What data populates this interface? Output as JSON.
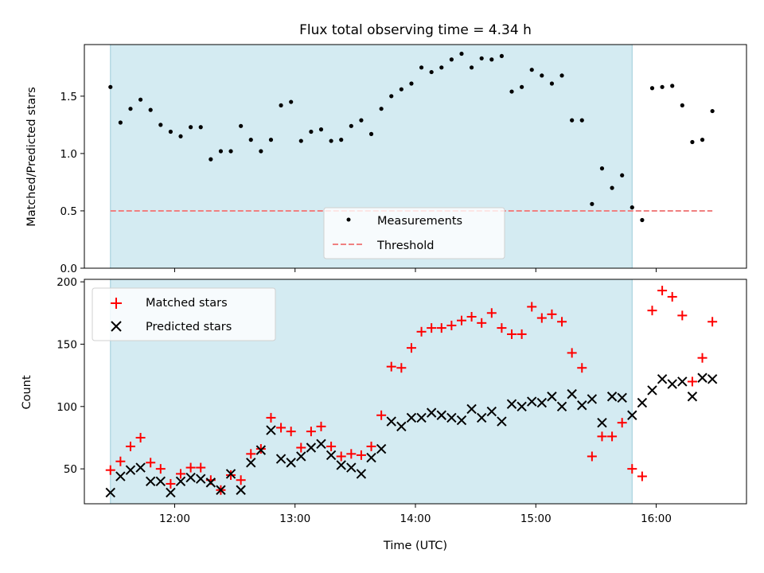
{
  "chart_data": [
    {
      "type": "scatter",
      "title": "Flux total observing time = 4.34 h",
      "xlabel": "",
      "ylabel": "Matched/Predicted stars",
      "ylim": [
        0,
        1.95
      ],
      "xlim": [
        "11:15",
        "16:45"
      ],
      "yticks": [
        0.0,
        0.5,
        1.0,
        1.5
      ],
      "ytick_labels": [
        "0.0",
        "0.5",
        "1.0",
        "1.5"
      ],
      "shaded_interval": [
        "11:28",
        "15:48"
      ],
      "legend_position": "lower-center",
      "threshold": 0.5,
      "threshold_range": [
        "11:28",
        "16:28"
      ],
      "series": [
        {
          "name": "Measurements",
          "style": "dots",
          "color": "#000000",
          "x": [
            "11:28",
            "11:33",
            "11:38",
            "11:43",
            "11:48",
            "11:53",
            "11:58",
            "12:03",
            "12:08",
            "12:13",
            "12:18",
            "12:23",
            "12:28",
            "12:33",
            "12:38",
            "12:43",
            "12:48",
            "12:53",
            "12:58",
            "13:03",
            "13:08",
            "13:13",
            "13:18",
            "13:23",
            "13:28",
            "13:33",
            "13:38",
            "13:43",
            "13:48",
            "13:53",
            "13:58",
            "14:03",
            "14:08",
            "14:13",
            "14:18",
            "14:23",
            "14:28",
            "14:33",
            "14:38",
            "14:43",
            "14:48",
            "14:53",
            "14:58",
            "15:03",
            "15:08",
            "15:13",
            "15:18",
            "15:23",
            "15:28",
            "15:33",
            "15:38",
            "15:43",
            "15:48",
            "15:53",
            "15:58",
            "16:03",
            "16:08",
            "16:13",
            "16:18",
            "16:23",
            "16:28"
          ],
          "y": [
            1.58,
            1.27,
            1.39,
            1.47,
            1.38,
            1.25,
            1.19,
            1.15,
            1.23,
            1.23,
            0.95,
            1.02,
            1.02,
            1.24,
            1.12,
            1.02,
            1.12,
            1.42,
            1.45,
            1.11,
            1.19,
            1.21,
            1.11,
            1.12,
            1.24,
            1.29,
            1.17,
            1.39,
            1.5,
            1.56,
            1.61,
            1.75,
            1.71,
            1.75,
            1.82,
            1.87,
            1.75,
            1.83,
            1.82,
            1.85,
            1.54,
            1.58,
            1.73,
            1.68,
            1.61,
            1.68,
            1.29,
            1.29,
            0.56,
            0.87,
            0.7,
            0.81,
            0.53,
            0.42,
            1.57,
            1.58,
            1.59,
            1.42,
            1.1,
            1.12,
            1.37
          ]
        },
        {
          "name": "Threshold",
          "style": "dashed",
          "color": "#f08080"
        }
      ]
    },
    {
      "type": "scatter",
      "title": "",
      "xlabel": "Time (UTC)",
      "ylabel": "Count",
      "ylim": [
        22,
        202
      ],
      "xlim": [
        "11:15",
        "16:45"
      ],
      "yticks": [
        50,
        100,
        150,
        200
      ],
      "ytick_labels": [
        "50",
        "100",
        "150",
        "200"
      ],
      "xticks": [
        "12:00",
        "13:00",
        "14:00",
        "15:00",
        "16:00"
      ],
      "xtick_labels": [
        "12:00",
        "13:00",
        "14:00",
        "15:00",
        "16:00"
      ],
      "shaded_interval": [
        "11:28",
        "15:48"
      ],
      "legend_position": "top-left",
      "series": [
        {
          "name": "Matched stars",
          "marker": "plus",
          "color": "#ff0000",
          "x": [
            "11:28",
            "11:33",
            "11:38",
            "11:43",
            "11:48",
            "11:53",
            "11:58",
            "12:03",
            "12:08",
            "12:13",
            "12:18",
            "12:23",
            "12:28",
            "12:33",
            "12:38",
            "12:43",
            "12:48",
            "12:53",
            "12:58",
            "13:03",
            "13:08",
            "13:13",
            "13:18",
            "13:23",
            "13:28",
            "13:33",
            "13:38",
            "13:43",
            "13:48",
            "13:53",
            "13:58",
            "14:03",
            "14:08",
            "14:13",
            "14:18",
            "14:23",
            "14:28",
            "14:33",
            "14:38",
            "14:43",
            "14:48",
            "14:53",
            "14:58",
            "15:03",
            "15:08",
            "15:13",
            "15:18",
            "15:23",
            "15:28",
            "15:33",
            "15:38",
            "15:43",
            "15:48",
            "15:53",
            "15:58",
            "16:03",
            "16:08",
            "16:13",
            "16:18",
            "16:23",
            "16:28"
          ],
          "y": [
            49,
            56,
            68,
            75,
            55,
            50,
            38,
            46,
            51,
            51,
            41,
            33,
            45,
            41,
            62,
            66,
            91,
            83,
            80,
            67,
            80,
            84,
            68,
            60,
            62,
            61,
            68,
            93,
            132,
            131,
            147,
            160,
            163,
            163,
            165,
            169,
            172,
            167,
            175,
            163,
            158,
            158,
            180,
            171,
            174,
            168,
            143,
            131,
            60,
            76,
            76,
            87,
            50,
            44,
            177,
            193,
            188,
            173,
            120,
            139,
            168
          ]
        },
        {
          "name": "Predicted stars",
          "marker": "x",
          "color": "#000000",
          "x": [
            "11:28",
            "11:33",
            "11:38",
            "11:43",
            "11:48",
            "11:53",
            "11:58",
            "12:03",
            "12:08",
            "12:13",
            "12:18",
            "12:23",
            "12:28",
            "12:33",
            "12:38",
            "12:43",
            "12:48",
            "12:53",
            "12:58",
            "13:03",
            "13:08",
            "13:13",
            "13:18",
            "13:23",
            "13:28",
            "13:33",
            "13:38",
            "13:43",
            "13:48",
            "13:53",
            "13:58",
            "14:03",
            "14:08",
            "14:13",
            "14:18",
            "14:23",
            "14:28",
            "14:33",
            "14:38",
            "14:43",
            "14:48",
            "14:53",
            "14:58",
            "15:03",
            "15:08",
            "15:13",
            "15:18",
            "15:23",
            "15:28",
            "15:33",
            "15:38",
            "15:43",
            "15:48",
            "15:53",
            "15:58",
            "16:03",
            "16:08",
            "16:13",
            "16:18",
            "16:23",
            "16:28"
          ],
          "y": [
            31,
            44,
            49,
            51,
            40,
            40,
            31,
            40,
            43,
            42,
            39,
            33,
            46,
            33,
            55,
            65,
            81,
            58,
            55,
            60,
            67,
            70,
            61,
            53,
            51,
            46,
            59,
            66,
            88,
            84,
            91,
            91,
            95,
            93,
            91,
            89,
            98,
            91,
            96,
            88,
            102,
            100,
            104,
            103,
            108,
            100,
            110,
            101,
            106,
            87,
            108,
            107,
            93,
            103,
            113,
            122,
            118,
            120,
            108,
            123,
            122
          ]
        }
      ]
    }
  ]
}
